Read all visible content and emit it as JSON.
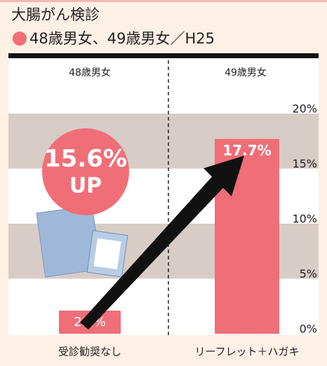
{
  "chart_data": {
    "type": "bar",
    "title": "大腸がん検診",
    "subtitle": "48歳男女、49歳男女／H25",
    "group_labels": [
      "48歳男女",
      "49歳男女"
    ],
    "categories": [
      "受診勧奨なし",
      "リーフレット＋ハガキ"
    ],
    "values": [
      2.1,
      17.7
    ],
    "value_labels": [
      "2.1%",
      "17.7%"
    ],
    "color": "#f06e78",
    "ylim": [
      0,
      20
    ],
    "yticks": [
      {
        "value": 0,
        "label": "0%"
      },
      {
        "value": 5,
        "label": "5%"
      },
      {
        "value": 10,
        "label": "10%"
      },
      {
        "value": 15,
        "label": "15%"
      },
      {
        "value": 20,
        "label": "20%"
      }
    ],
    "band_color": "#d8ccc6",
    "annotation": [
      "15.6%",
      "UP"
    ]
  }
}
